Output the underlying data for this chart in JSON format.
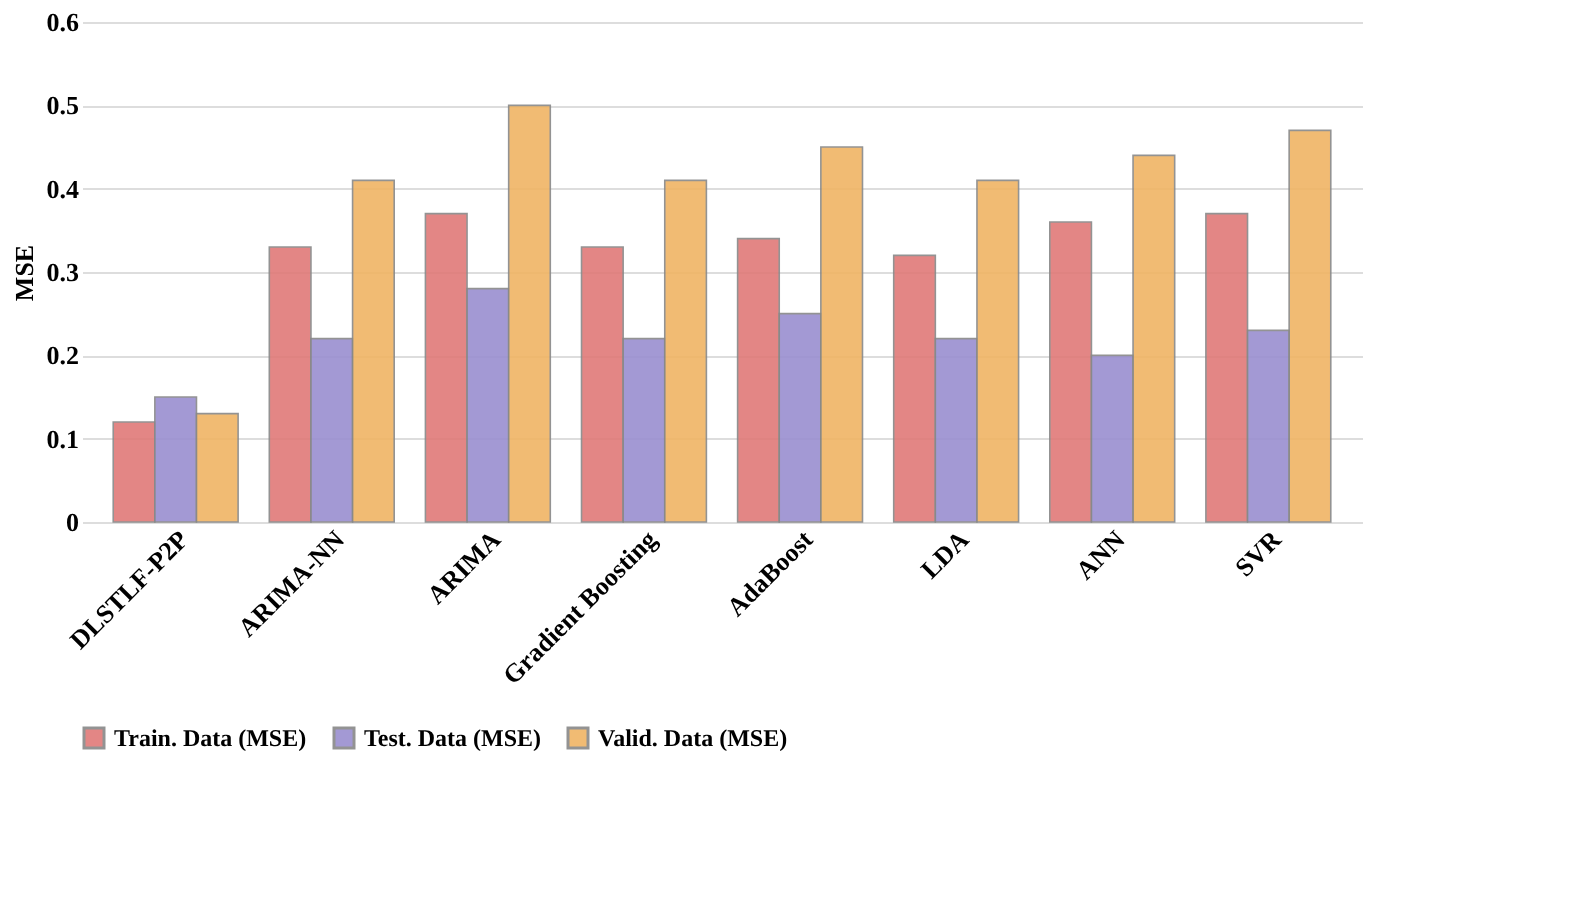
{
  "chart_data": {
    "type": "bar",
    "ylabel": "MSE",
    "categories": [
      "DLSTLF-P2P",
      "ARIMA-NN",
      "ARIMA",
      "Gradient Boosting",
      "AdaBoost",
      "LDA",
      "ANN",
      "SVR"
    ],
    "series": [
      {
        "name": "Train. Data (MSE)",
        "color": "#e07a78",
        "values": [
          0.12,
          0.33,
          0.37,
          0.33,
          0.34,
          0.32,
          0.36,
          0.37
        ]
      },
      {
        "name": "Test. Data (MSE)",
        "color": "#9a8fd0",
        "values": [
          0.15,
          0.22,
          0.28,
          0.22,
          0.25,
          0.22,
          0.2,
          0.23
        ]
      },
      {
        "name": "Valid. Data (MSE)",
        "color": "#f0b464",
        "values": [
          0.13,
          0.41,
          0.5,
          0.41,
          0.45,
          0.41,
          0.44,
          0.47
        ]
      }
    ],
    "ylim": [
      0,
      0.6
    ],
    "yticks": [
      0,
      0.1,
      0.2,
      0.3,
      0.4,
      0.5,
      0.6
    ],
    "grid": "y",
    "legend": "bottom"
  }
}
